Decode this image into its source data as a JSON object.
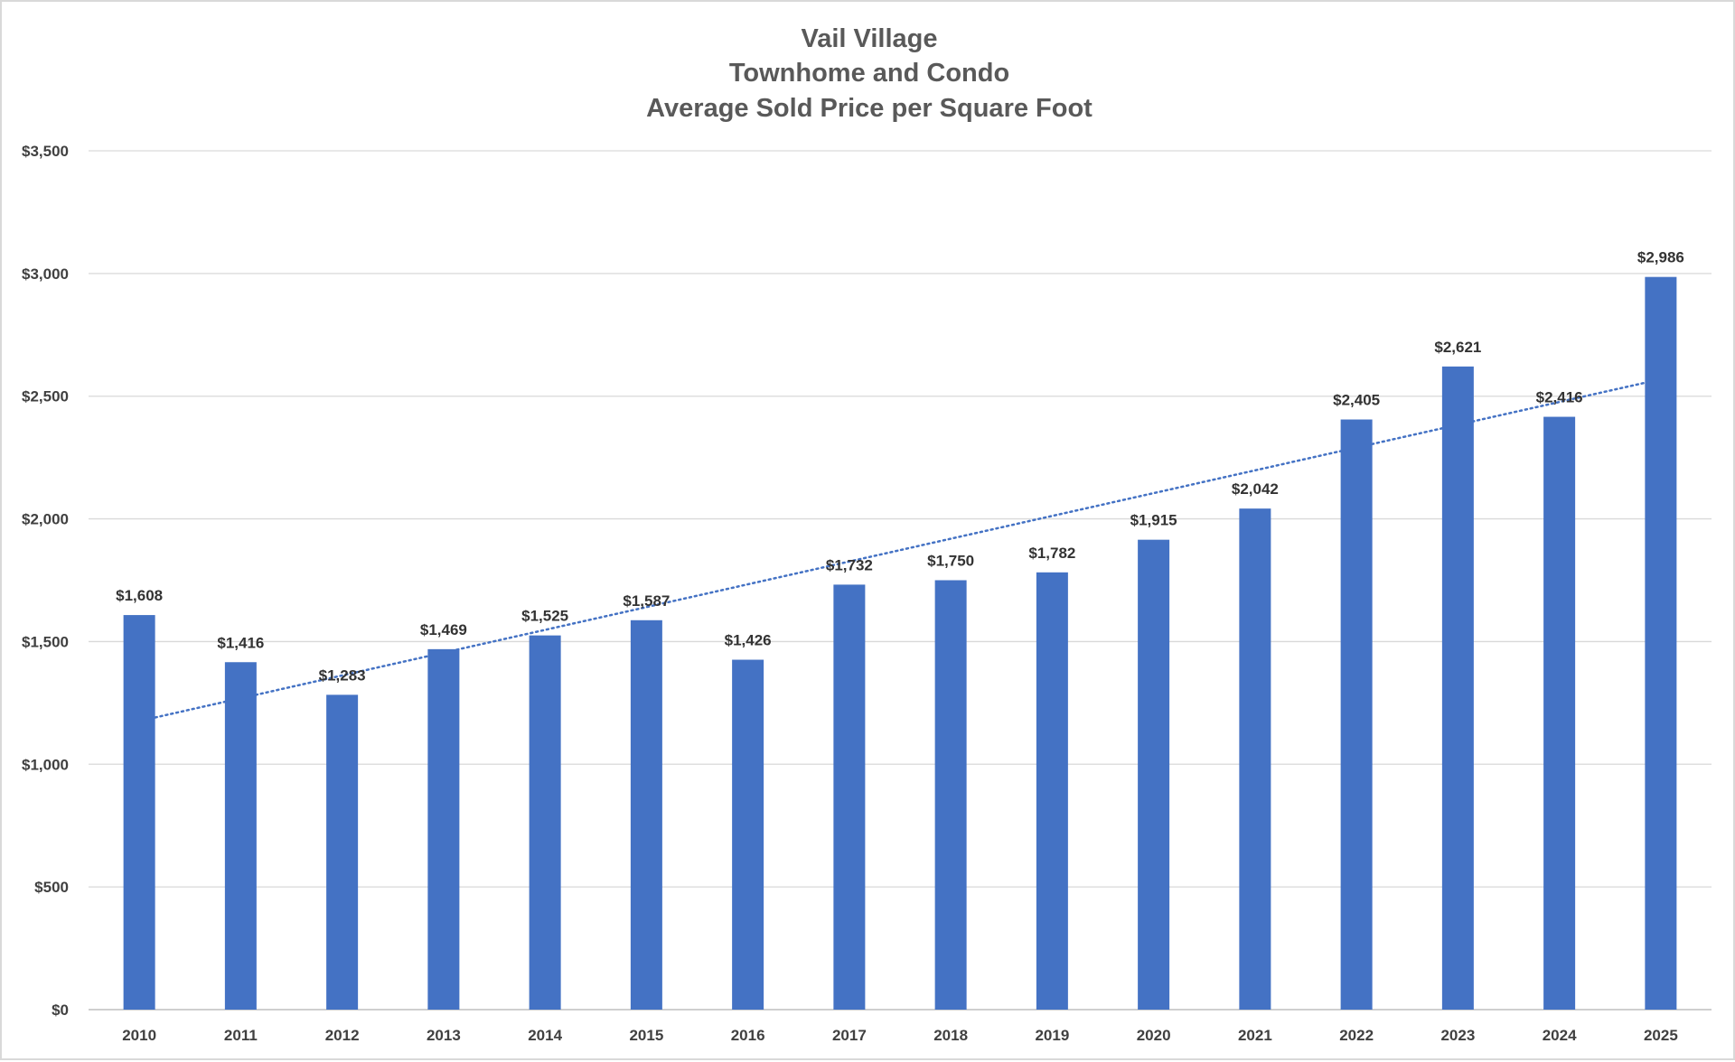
{
  "chart_data": {
    "type": "bar",
    "title": [
      "Vail Village",
      "Townhome and Condo",
      "Average Sold Price per Square Foot"
    ],
    "categories": [
      "2010",
      "2011",
      "2012",
      "2013",
      "2014",
      "2015",
      "2016",
      "2017",
      "2018",
      "2019",
      "2020",
      "2021",
      "2022",
      "2023",
      "2024",
      "2025"
    ],
    "values": [
      1608,
      1416,
      1283,
      1469,
      1525,
      1587,
      1426,
      1732,
      1750,
      1782,
      1915,
      2042,
      2405,
      2621,
      2416,
      2986
    ],
    "data_labels": [
      "$1,608",
      "$1,416",
      "$1,283",
      "$1,469",
      "$1,525",
      "$1,587",
      "$1,426",
      "$1,732",
      "$1,750",
      "$1,782",
      "$1,915",
      "$2,042",
      "$2,405",
      "$2,621",
      "$2,416",
      "$2,986"
    ],
    "ylim": [
      0,
      3500
    ],
    "yticks": [
      0,
      500,
      1000,
      1500,
      2000,
      2500,
      3000,
      3500
    ],
    "ytick_labels": [
      "$0",
      "$500",
      "$1,000",
      "$1,500",
      "$2,000",
      "$2,500",
      "$3,000",
      "$3,500"
    ],
    "xlabel": "",
    "ylabel": "",
    "grid": true,
    "legend": "none",
    "bar_color": "#4472C4",
    "trendline": {
      "type": "linear",
      "style": "dotted",
      "color": "#4472C4"
    }
  }
}
